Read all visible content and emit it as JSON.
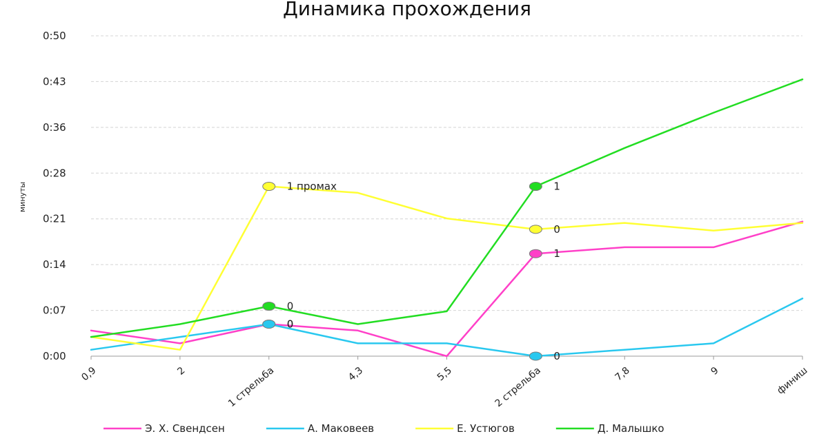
{
  "chart_data": {
    "type": "line",
    "title": "Динамика прохождения",
    "ylabel": "минуты",
    "xlabel": "",
    "ylim": [
      0,
      50
    ],
    "yticks": [
      "0:00",
      "0:07",
      "0:14",
      "0:21",
      "0:28",
      "0:36",
      "0:43",
      "0:50"
    ],
    "grid": true,
    "legend": "bottom",
    "categories": [
      "0,9",
      "2",
      "1 стрельба",
      "4,3",
      "5,5",
      "2 стрельба",
      "7,8",
      "9",
      "финиш"
    ],
    "series": [
      {
        "name": "Э. Х. Свендсен",
        "color": "#ff40c8",
        "values": [
          4,
          2,
          5,
          4,
          0,
          16,
          17,
          17,
          21
        ]
      },
      {
        "name": "А. Маковеев",
        "color": "#29c8ef",
        "values": [
          1,
          3,
          5,
          2,
          2,
          0,
          1,
          2,
          9
        ]
      },
      {
        "name": "Е. Устюгов",
        "color": "#ffff33",
        "values": [
          3,
          1,
          26.5,
          25.5,
          21.5,
          19.8,
          20.8,
          19.6,
          20.8
        ]
      },
      {
        "name": "Д. Малышко",
        "color": "#22dd22",
        "values": [
          3,
          5,
          7.8,
          5,
          7,
          26.5,
          32.5,
          38,
          43.2
        ]
      }
    ],
    "annotations": [
      {
        "series": 2,
        "index": 2,
        "text": "1 промах"
      },
      {
        "series": 3,
        "index": 2,
        "text": "0"
      },
      {
        "series": 0,
        "index": 2,
        "text": "0"
      },
      {
        "series": 1,
        "index": 2,
        "text": "0"
      },
      {
        "series": 3,
        "index": 5,
        "text": "1"
      },
      {
        "series": 2,
        "index": 5,
        "text": "0"
      },
      {
        "series": 0,
        "index": 5,
        "text": "1"
      },
      {
        "series": 1,
        "index": 5,
        "text": "0"
      }
    ]
  }
}
